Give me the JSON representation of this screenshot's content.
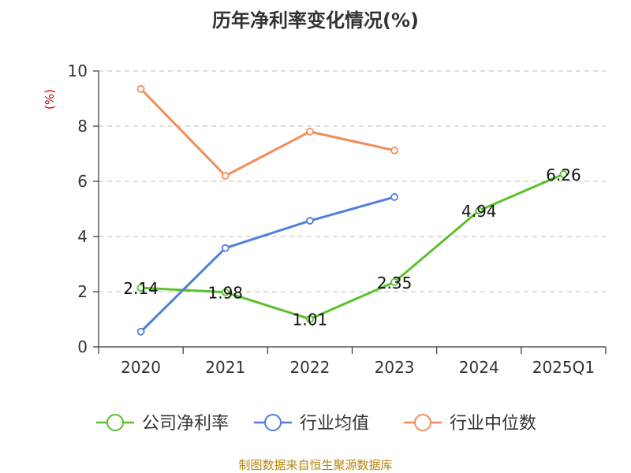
{
  "chart_data": {
    "type": "line",
    "title": "历年净利率变化情况(%)",
    "ylabel": "(%)",
    "ylim": [
      0,
      10
    ],
    "yticks": [
      0,
      2,
      4,
      6,
      8,
      10
    ],
    "categories": [
      "2020",
      "2021",
      "2022",
      "2023",
      "2024",
      "2025Q1"
    ],
    "grid": true,
    "legend_position": "bottom",
    "series": [
      {
        "name": "公司净利率",
        "color": "#5ac02c",
        "values": [
          2.14,
          1.98,
          1.01,
          2.35,
          4.94,
          6.26
        ],
        "labels": [
          "2.14",
          "1.98",
          "1.01",
          "2.35",
          "4.94",
          "6.26"
        ]
      },
      {
        "name": "行业均值",
        "color": "#4f7fdb",
        "values": [
          0.55,
          3.58,
          4.57,
          5.43,
          null,
          null
        ]
      },
      {
        "name": "行业中位数",
        "color": "#f28c5a",
        "values": [
          9.35,
          6.2,
          7.8,
          7.12,
          null,
          null
        ]
      }
    ],
    "source": "制图数据来自恒生聚源数据库"
  }
}
